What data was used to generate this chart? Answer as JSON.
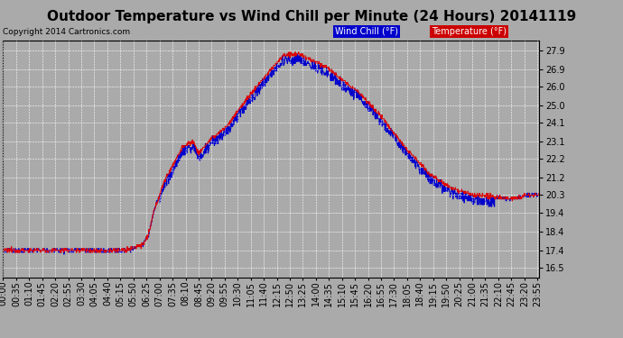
{
  "title": "Outdoor Temperature vs Wind Chill per Minute (24 Hours) 20141119",
  "copyright_text": "Copyright 2014 Cartronics.com",
  "legend_labels": [
    "Wind Chill (°F)",
    "Temperature (°F)"
  ],
  "yticks": [
    16.5,
    17.4,
    18.4,
    19.4,
    20.3,
    21.2,
    22.2,
    23.1,
    24.1,
    25.0,
    26.0,
    26.9,
    27.9
  ],
  "ylim": [
    16.0,
    28.4
  ],
  "background_color": "#aaaaaa",
  "plot_bg_color": "#aaaaaa",
  "grid_color": "#ffffff",
  "title_fontsize": 11,
  "tick_fontsize": 7,
  "x_tick_interval": 35,
  "time_labels": [
    "00:00",
    "00:35",
    "01:10",
    "01:45",
    "02:20",
    "02:55",
    "03:30",
    "04:05",
    "04:40",
    "05:15",
    "05:50",
    "06:25",
    "07:00",
    "07:35",
    "08:10",
    "08:45",
    "09:20",
    "09:55",
    "10:30",
    "11:05",
    "11:40",
    "12:15",
    "12:50",
    "13:25",
    "14:00",
    "14:35",
    "15:10",
    "15:45",
    "16:20",
    "16:55",
    "17:30",
    "18:05",
    "18:40",
    "19:15",
    "19:50",
    "20:25",
    "21:00",
    "21:35",
    "22:10",
    "22:45",
    "23:20",
    "23:55"
  ],
  "num_minutes": 1440,
  "temp_segments": [
    {
      "t0": 0.0,
      "t1": 0.5,
      "v0": 17.4,
      "v1": 17.4
    },
    {
      "t0": 0.5,
      "t1": 0.6,
      "v0": 17.4,
      "v1": 17.6
    },
    {
      "t0": 0.6,
      "t1": 0.625,
      "v0": 17.6,
      "v1": 17.6
    },
    {
      "t0": 0.625,
      "t1": 0.65,
      "v0": 17.6,
      "v1": 17.9
    },
    {
      "t0": 0.65,
      "t1": 0.675,
      "v0": 17.9,
      "v1": 18.2
    },
    {
      "t0": 0.675,
      "t1": 0.72,
      "v0": 18.2,
      "v1": 20.5
    },
    {
      "t0": 0.72,
      "t1": 0.75,
      "v0": 20.5,
      "v1": 22.3
    },
    {
      "t0": 0.75,
      "t1": 0.8,
      "v0": 22.3,
      "v1": 23.1
    },
    {
      "t0": 0.8,
      "t1": 0.83,
      "v0": 23.1,
      "v1": 22.6
    },
    {
      "t0": 0.83,
      "t1": 0.85,
      "v0": 22.6,
      "v1": 23.1
    },
    {
      "t0": 0.85,
      "t1": 0.92,
      "v0": 23.1,
      "v1": 25.3
    },
    {
      "t0": 0.92,
      "t1": 0.96,
      "v0": 25.3,
      "v1": 27.5
    },
    {
      "t0": 0.96,
      "t1": 1.04,
      "v0": 27.5,
      "v1": 27.7
    },
    {
      "t0": 1.04,
      "t1": 1.1,
      "v0": 27.7,
      "v1": 27.0
    },
    {
      "t0": 1.1,
      "t1": 1.18,
      "v0": 27.0,
      "v1": 26.5
    },
    {
      "t0": 1.18,
      "t1": 1.3,
      "v0": 26.5,
      "v1": 25.5
    },
    {
      "t0": 1.3,
      "t1": 1.45,
      "v0": 25.5,
      "v1": 23.5
    },
    {
      "t0": 1.45,
      "t1": 1.6,
      "v0": 23.5,
      "v1": 21.5
    },
    {
      "t0": 1.6,
      "t1": 1.75,
      "v0": 21.5,
      "v1": 20.5
    },
    {
      "t0": 1.75,
      "t1": 1.875,
      "v0": 20.5,
      "v1": 20.0
    },
    {
      "t0": 1.875,
      "t1": 2.0,
      "v0": 20.0,
      "v1": 20.3
    }
  ]
}
